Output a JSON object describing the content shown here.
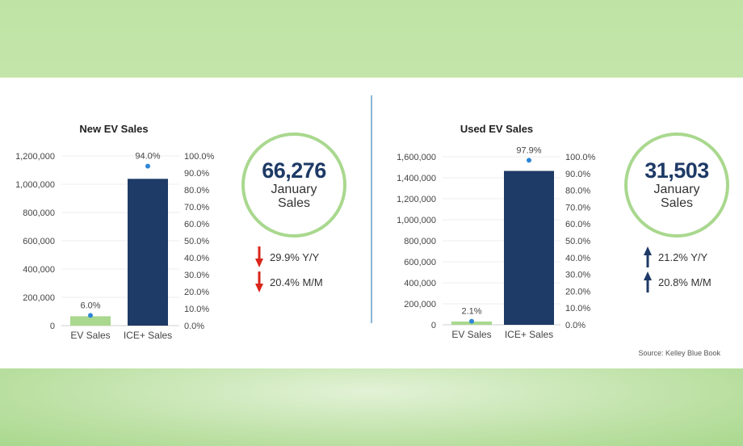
{
  "colors": {
    "ev_bar": "#a9d88e",
    "ice_bar": "#1e3a66",
    "share_dot": "#2f86d6",
    "down_arrow": "#d9261c",
    "up_arrow": "#1e3a66",
    "circle_ring": "#a9d88e"
  },
  "chart_data": [
    {
      "type": "bar",
      "title": "New EV Sales",
      "categories": [
        "EV Sales",
        "ICE+ Sales"
      ],
      "series": [
        {
          "values": [
            66276,
            1038000
          ]
        },
        {
          "values": [
            6.0,
            94.0
          ]
        }
      ],
      "share_labels": [
        "6.0%",
        "94.0%"
      ],
      "ylim": [
        0,
        1200000
      ],
      "y_ticks": [
        "0",
        "200,000",
        "400,000",
        "600,000",
        "800,000",
        "1,000,000",
        "1,200,000"
      ],
      "y2lim": [
        0,
        100
      ],
      "y2_ticks": [
        "0.0%",
        "10.0%",
        "20.0%",
        "30.0%",
        "40.0%",
        "50.0%",
        "60.0%",
        "70.0%",
        "80.0%",
        "90.0%",
        "100.0%"
      ],
      "grid": true
    },
    {
      "type": "bar",
      "title": "Used EV Sales",
      "categories": [
        "EV Sales",
        "ICE+ Sales"
      ],
      "series": [
        {
          "values": [
            31503,
            1465000
          ]
        },
        {
          "values": [
            2.1,
            97.9
          ]
        }
      ],
      "share_labels": [
        "2.1%",
        "97.9%"
      ],
      "ylim": [
        0,
        1600000
      ],
      "y_ticks": [
        "0",
        "200,000",
        "400,000",
        "600,000",
        "800,000",
        "1,000,000",
        "1,200,000",
        "1,400,000",
        "1,600,000"
      ],
      "y2lim": [
        0,
        100
      ],
      "y2_ticks": [
        "0.0%",
        "10.0%",
        "20.0%",
        "30.0%",
        "40.0%",
        "50.0%",
        "60.0%",
        "70.0%",
        "80.0%",
        "90.0%",
        "100.0%"
      ],
      "grid": true
    }
  ],
  "new_kpi": {
    "value": "66,276",
    "line1": "January",
    "line2": "Sales",
    "changes": [
      {
        "direction": "down",
        "text": "29.9% Y/Y"
      },
      {
        "direction": "down",
        "text": "20.4% M/M"
      }
    ]
  },
  "used_kpi": {
    "value": "31,503",
    "line1": "January",
    "line2": "Sales",
    "changes": [
      {
        "direction": "up",
        "text": "21.2% Y/Y"
      },
      {
        "direction": "up",
        "text": "20.8% M/M"
      }
    ]
  },
  "source": "Source: Kelley Blue Book"
}
